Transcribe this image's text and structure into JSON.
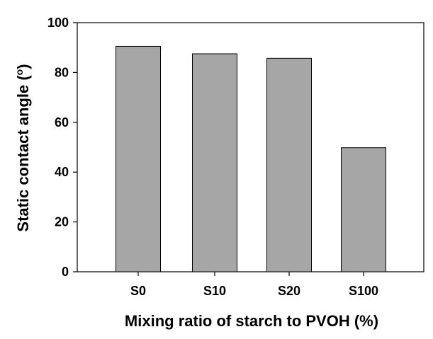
{
  "chart_data": {
    "type": "bar",
    "title": "",
    "xlabel": "Mixing ratio of starch to PVOH (%)",
    "ylabel_text": "Static contact angle (",
    "ylabel_unit": "o",
    "ylabel_close": ")",
    "categories": [
      "S0",
      "S10",
      "S20",
      "S100"
    ],
    "values": [
      90.5,
      87.5,
      85.7,
      49.8
    ],
    "ylim": [
      0,
      100
    ],
    "yticks": [
      0,
      20,
      40,
      60,
      80,
      100
    ],
    "grid": false,
    "legend": "none",
    "bar_color": "#a6a6a6"
  }
}
